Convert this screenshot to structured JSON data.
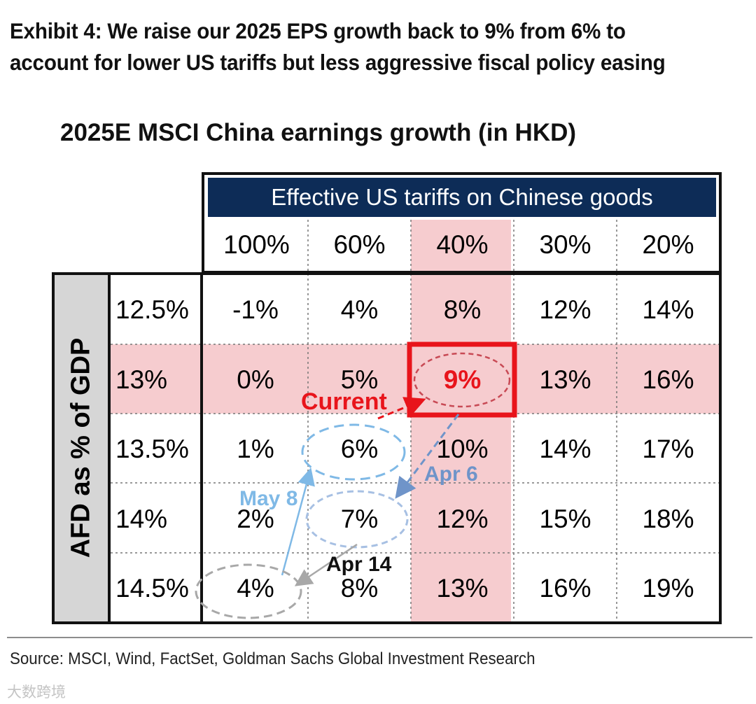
{
  "exhibit_title": "Exhibit 4: We raise our 2025 EPS growth back to 9% from 6% to account for lower US tariffs but less aggressive fiscal policy easing",
  "source": "Source: MSCI, Wind, FactSet, Goldman Sachs Global Investment Research",
  "watermark": "大数跨境",
  "colors": {
    "header_band": "#0d2c57",
    "highlight": "#f6cccf",
    "current": "#e8141b",
    "apr6": "#6f94c9",
    "may8": "#7fb9e6",
    "apr14": "#a8a8a8"
  },
  "chart_data": {
    "type": "table",
    "title": "2025E MSCI China earnings growth (in HKD)",
    "column_header": "Effective US tariffs on Chinese goods",
    "row_header": "AFD as % of GDP",
    "columns": [
      "100%",
      "60%",
      "40%",
      "30%",
      "20%"
    ],
    "rows": [
      "12.5%",
      "13%",
      "13.5%",
      "14%",
      "14.5%"
    ],
    "values": [
      [
        "-1%",
        "4%",
        "8%",
        "12%",
        "14%"
      ],
      [
        "0%",
        "5%",
        "9%",
        "13%",
        "16%"
      ],
      [
        "1%",
        "6%",
        "10%",
        "14%",
        "17%"
      ],
      [
        "2%",
        "7%",
        "12%",
        "15%",
        "18%"
      ],
      [
        "4%",
        "8%",
        "13%",
        "16%",
        "19%"
      ]
    ],
    "highlight_row": "13%",
    "highlight_column": "40%",
    "annotations": [
      {
        "label": "Current",
        "cell": [
          "13%",
          "40%"
        ],
        "value": "9%"
      },
      {
        "label": "Apr 6",
        "cell": [
          "14%",
          "60%"
        ],
        "value": "7%"
      },
      {
        "label": "Apr 14",
        "cell": [
          "14.5%",
          "100%"
        ],
        "value": "4%"
      },
      {
        "label": "May 8",
        "cell": [
          "13.5%",
          "60%"
        ],
        "value": "6%"
      }
    ]
  }
}
